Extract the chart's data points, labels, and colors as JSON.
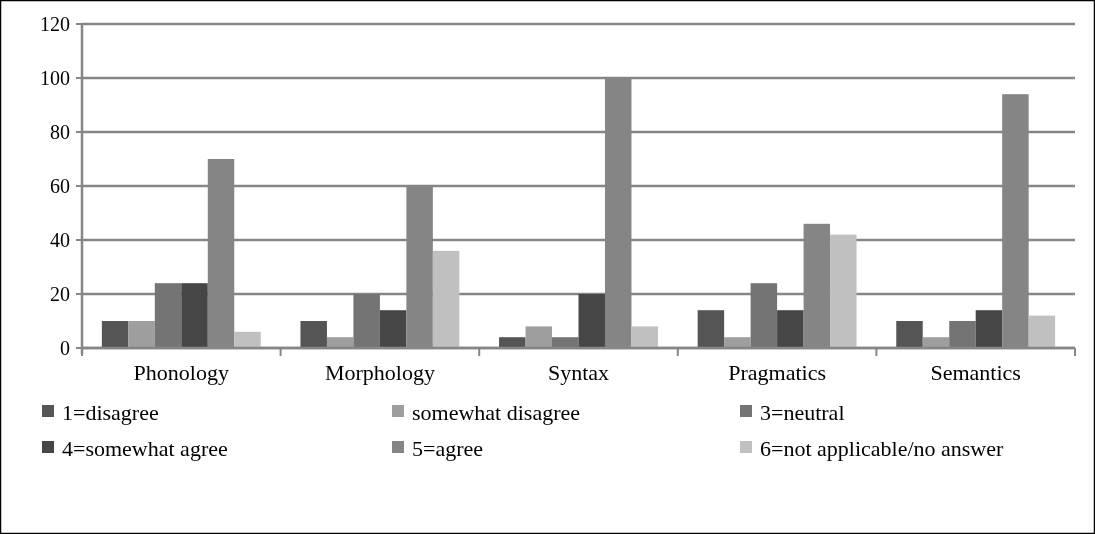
{
  "chart_data": {
    "type": "bar",
    "categories": [
      "Phonology",
      "Morphology",
      "Syntax",
      "Pragmatics",
      "Semantics"
    ],
    "series": [
      {
        "name": "1=disagree",
        "color": "#555555",
        "values": [
          10,
          10,
          4,
          14,
          10
        ]
      },
      {
        "name": "somewhat disagree",
        "color": "#9e9e9e",
        "values": [
          10,
          4,
          8,
          4,
          4
        ]
      },
      {
        "name": "3=neutral",
        "color": "#747474",
        "values": [
          24,
          20,
          4,
          24,
          10
        ]
      },
      {
        "name": "4=somewhat agree",
        "color": "#464646",
        "values": [
          24,
          14,
          20,
          14,
          14
        ]
      },
      {
        "name": "5=agree",
        "color": "#858585",
        "values": [
          70,
          60,
          100,
          46,
          94
        ]
      },
      {
        "name": "6=not applicable/no answer",
        "color": "#c0c0c0",
        "values": [
          6,
          36,
          8,
          42,
          12
        ]
      }
    ],
    "ylim": [
      0,
      120
    ],
    "yticks": [
      0,
      20,
      40,
      60,
      80,
      100,
      120
    ],
    "grid": "y",
    "legend": "bottom"
  }
}
